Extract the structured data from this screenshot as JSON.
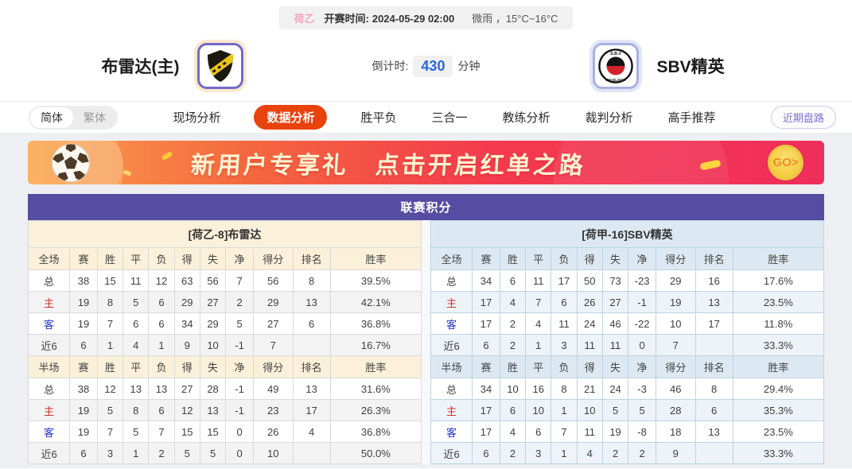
{
  "match_header": {
    "league_badge": "荷乙",
    "kickoff_label": "开赛时间:",
    "kickoff_time": "2024-05-29 02:00",
    "weather": "微雨 ，15°C~16°C",
    "home_team": "布雷达(主)",
    "away_team": "SBV精英",
    "countdown_label": "倒计时:",
    "countdown_value": "430",
    "countdown_unit": "分钟"
  },
  "nav": {
    "lang_simplified": "简体",
    "lang_traditional": "繁体",
    "tabs": [
      {
        "label": "现场分析",
        "active": false
      },
      {
        "label": "数据分析",
        "active": true
      },
      {
        "label": "胜平负",
        "active": false
      },
      {
        "label": "三合一",
        "active": false
      },
      {
        "label": "教练分析",
        "active": false
      },
      {
        "label": "裁判分析",
        "active": false
      },
      {
        "label": "高手推荐",
        "active": false
      }
    ],
    "recent_trends_button": "近期盘路"
  },
  "banner": {
    "text_part1": "新用户专享礼",
    "text_part2": "点击开启红单之路",
    "go_button": "GO>"
  },
  "standings": {
    "title": "联赛积分",
    "home": {
      "section_title": "[荷乙-8]布雷达",
      "full_header": [
        "全场",
        "赛",
        "胜",
        "平",
        "负",
        "得",
        "失",
        "净",
        "得分",
        "排名",
        "胜率"
      ],
      "full_rows": [
        {
          "label": "总",
          "cells": [
            "38",
            "15",
            "11",
            "12",
            "63",
            "56",
            "7",
            "56",
            "8",
            "39.5%"
          ]
        },
        {
          "label": "主",
          "cells": [
            "19",
            "8",
            "5",
            "6",
            "29",
            "27",
            "2",
            "29",
            "13",
            "42.1%"
          ]
        },
        {
          "label": "客",
          "cells": [
            "19",
            "7",
            "6",
            "6",
            "34",
            "29",
            "5",
            "27",
            "6",
            "36.8%"
          ]
        },
        {
          "label": "近6",
          "cells": [
            "6",
            "1",
            "4",
            "1",
            "9",
            "10",
            "-1",
            "7",
            "",
            "16.7%"
          ]
        }
      ],
      "half_header": [
        "半场",
        "赛",
        "胜",
        "平",
        "负",
        "得",
        "失",
        "净",
        "得分",
        "排名",
        "胜率"
      ],
      "half_rows": [
        {
          "label": "总",
          "cells": [
            "38",
            "12",
            "13",
            "13",
            "27",
            "28",
            "-1",
            "49",
            "13",
            "31.6%"
          ]
        },
        {
          "label": "主",
          "cells": [
            "19",
            "5",
            "8",
            "6",
            "12",
            "13",
            "-1",
            "23",
            "17",
            "26.3%"
          ]
        },
        {
          "label": "客",
          "cells": [
            "19",
            "7",
            "5",
            "7",
            "15",
            "15",
            "0",
            "26",
            "4",
            "36.8%"
          ]
        },
        {
          "label": "近6",
          "cells": [
            "6",
            "3",
            "1",
            "2",
            "5",
            "5",
            "0",
            "10",
            "",
            "50.0%"
          ]
        }
      ]
    },
    "away": {
      "section_title": "[荷甲-16]SBV精英",
      "full_header": [
        "全场",
        "赛",
        "胜",
        "平",
        "负",
        "得",
        "失",
        "净",
        "得分",
        "排名",
        "胜率"
      ],
      "full_rows": [
        {
          "label": "总",
          "cells": [
            "34",
            "6",
            "11",
            "17",
            "50",
            "73",
            "-23",
            "29",
            "16",
            "17.6%"
          ]
        },
        {
          "label": "主",
          "cells": [
            "17",
            "4",
            "7",
            "6",
            "26",
            "27",
            "-1",
            "19",
            "13",
            "23.5%"
          ]
        },
        {
          "label": "客",
          "cells": [
            "17",
            "2",
            "4",
            "11",
            "24",
            "46",
            "-22",
            "10",
            "17",
            "11.8%"
          ]
        },
        {
          "label": "近6",
          "cells": [
            "6",
            "2",
            "1",
            "3",
            "11",
            "11",
            "0",
            "7",
            "",
            "33.3%"
          ]
        }
      ],
      "half_header": [
        "半场",
        "赛",
        "胜",
        "平",
        "负",
        "得",
        "失",
        "净",
        "得分",
        "排名",
        "胜率"
      ],
      "half_rows": [
        {
          "label": "总",
          "cells": [
            "34",
            "10",
            "16",
            "8",
            "21",
            "24",
            "-3",
            "46",
            "8",
            "29.4%"
          ]
        },
        {
          "label": "主",
          "cells": [
            "17",
            "6",
            "10",
            "1",
            "10",
            "5",
            "5",
            "28",
            "6",
            "35.3%"
          ]
        },
        {
          "label": "客",
          "cells": [
            "17",
            "4",
            "6",
            "7",
            "11",
            "19",
            "-8",
            "18",
            "13",
            "23.5%"
          ]
        },
        {
          "label": "近6",
          "cells": [
            "6",
            "2",
            "3",
            "1",
            "4",
            "2",
            "2",
            "9",
            "",
            "33.3%"
          ]
        }
      ]
    }
  },
  "colors": {
    "active_tab": "#e8430d",
    "countdown_blue": "#2a67da",
    "table_header_purple": "#564da3",
    "home_section_bg": "#fbf0d9",
    "away_section_bg": "#dde9f2",
    "home_row_label": "#d42c2c",
    "away_row_label": "#2536cc",
    "banner_gold": "#f5cf45"
  }
}
